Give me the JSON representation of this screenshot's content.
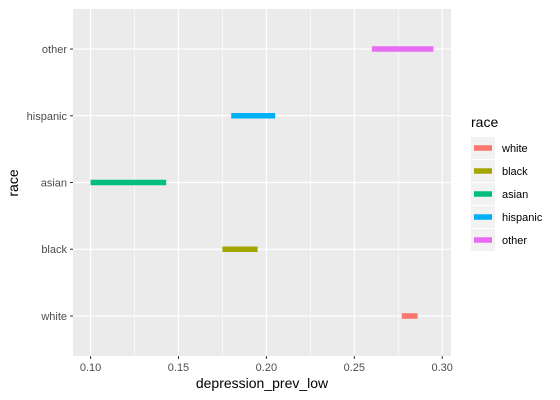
{
  "chart_data": {
    "type": "interval",
    "title": "",
    "xlabel": "depression_prev_low",
    "ylabel": "race",
    "xlim": [
      0.09,
      0.305
    ],
    "x_ticks": [
      0.1,
      0.15,
      0.2,
      0.25,
      0.3
    ],
    "x_tick_labels": [
      "0.10",
      "0.15",
      "0.20",
      "0.25",
      "0.30"
    ],
    "categories": [
      "white",
      "black",
      "asian",
      "hispanic",
      "other"
    ],
    "series": [
      {
        "name": "white",
        "category": "white",
        "x_start": 0.277,
        "x_end": 0.286,
        "color": "#F8766D"
      },
      {
        "name": "black",
        "category": "black",
        "x_start": 0.175,
        "x_end": 0.195,
        "color": "#A3A500"
      },
      {
        "name": "asian",
        "category": "asian",
        "x_start": 0.1,
        "x_end": 0.143,
        "color": "#00BF7D"
      },
      {
        "name": "hispanic",
        "category": "hispanic",
        "x_start": 0.18,
        "x_end": 0.205,
        "color": "#00B0F6"
      },
      {
        "name": "other",
        "category": "other",
        "x_start": 0.26,
        "x_end": 0.295,
        "color": "#E76BF3"
      }
    ],
    "legend": {
      "title": "race",
      "position": "right",
      "items": [
        "white",
        "black",
        "asian",
        "hispanic",
        "other"
      ]
    },
    "panel_background": "#EBEBEB",
    "grid": true
  }
}
